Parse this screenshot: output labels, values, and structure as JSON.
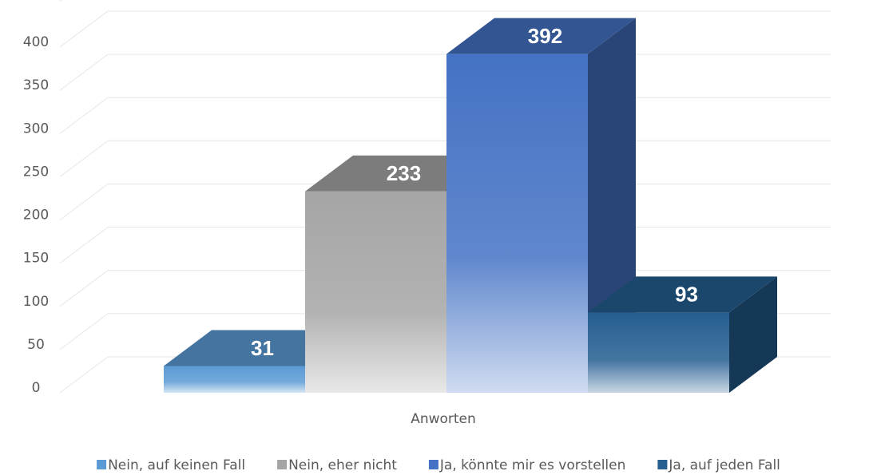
{
  "chart_data": {
    "type": "bar3d",
    "categories": [
      "Anworten"
    ],
    "series": [
      {
        "name": "Nein, auf keinen Fall",
        "color": "#5b9bd5",
        "values": [
          31
        ]
      },
      {
        "name": "Nein, eher nicht",
        "color": "#a5a5a5",
        "values": [
          233
        ]
      },
      {
        "name": "Ja, könnte mir es vorstellen",
        "color": "#4472c4",
        "values": [
          392
        ]
      },
      {
        "name": "Ja, auf jeden Fall",
        "color": "#255e91",
        "values": [
          93
        ]
      }
    ],
    "ylim": [
      0,
      450
    ],
    "yticks": [
      0,
      50,
      100,
      150,
      200,
      250,
      300,
      350,
      400
    ],
    "grid": true,
    "legend": "bottom"
  }
}
